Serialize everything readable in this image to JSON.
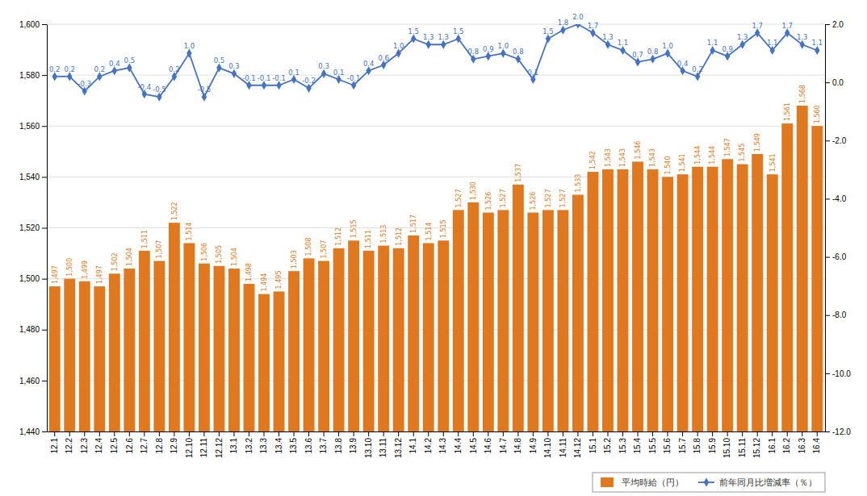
{
  "chart_data": {
    "type": "bar",
    "categories": [
      "12.1",
      "12.2",
      "12.3",
      "12.4",
      "12.5",
      "12.6",
      "12.7",
      "12.8",
      "12.9",
      "12.10",
      "12.11",
      "12.12",
      "13.1",
      "13.2",
      "13.3",
      "13.4",
      "13.5",
      "13.6",
      "13.7",
      "13.8",
      "13.9",
      "13.10",
      "13.11",
      "13.12",
      "14.1",
      "14.2",
      "14.3",
      "14.4",
      "14.5",
      "14.6",
      "14.7",
      "14.8",
      "14.9",
      "14.10",
      "14.11",
      "14.12",
      "15.1",
      "15.2",
      "15.3",
      "15.4",
      "15.5",
      "15.6",
      "15.7",
      "15.8",
      "15.9",
      "15.10",
      "15.11",
      "15.12",
      "16.1",
      "16.2",
      "16.3",
      "16.4"
    ],
    "series": [
      {
        "name": "平均時給（円）",
        "type": "bar",
        "color": "#E07820",
        "values": [
          1497,
          1500,
          1499,
          1497,
          1502,
          1504,
          1511,
          1507,
          1522,
          1514,
          1506,
          1505,
          1504,
          1498,
          1494,
          1495,
          1503,
          1508,
          1507,
          1512,
          1515,
          1511,
          1513,
          1512,
          1517,
          1514,
          1515,
          1527,
          1530,
          1526,
          1527,
          1537,
          1526,
          1527,
          1527,
          1533,
          1542,
          1543,
          1543,
          1546,
          1543,
          1540,
          1541,
          1544,
          1544,
          1547,
          1545,
          1549,
          1541,
          1561,
          1568,
          1560
        ],
        "value_labels": [
          "1,497",
          "1,500",
          "1,499",
          "1,497",
          "1,502",
          "1,504",
          "1,511",
          "1,507",
          "1,522",
          "1,514",
          "1,506",
          "1,505",
          "1,504",
          "1,498",
          "1,494",
          "1,495",
          "1,503",
          "1,508",
          "1,507",
          "1,512",
          "1,515",
          "1,511",
          "1,513",
          "1,512",
          "1,517",
          "1,514",
          "1,515",
          "1,527",
          "1,530",
          "1,526",
          "1,527",
          "1,537",
          "1,526",
          "1,527",
          "1,527",
          "1,533",
          "1,542",
          "1,543",
          "1,543",
          "1,546",
          "1,543",
          "1,540",
          "1,541",
          "1,544",
          "1,544",
          "1,547",
          "1,545",
          "1,549",
          "1,541",
          "1,561",
          "1,568",
          "1,560"
        ]
      },
      {
        "name": "前年同月比増減率（％）",
        "type": "line",
        "axis": "y2",
        "color": "#4472C4",
        "marker": "diamond",
        "values": [
          0.2,
          0.2,
          -0.3,
          0.2,
          0.4,
          0.5,
          -0.4,
          -0.5,
          0.2,
          1.0,
          -0.5,
          0.5,
          0.3,
          -0.1,
          -0.1,
          -0.1,
          0.1,
          -0.2,
          0.3,
          0.1,
          -0.1,
          0.4,
          0.6,
          1.0,
          1.5,
          1.3,
          1.3,
          1.5,
          0.8,
          0.9,
          1.0,
          0.8,
          0.1,
          1.5,
          1.8,
          2.0,
          1.7,
          1.3,
          1.1,
          0.7,
          0.8,
          1.0,
          0.4,
          0.2,
          1.1,
          0.9,
          1.3,
          1.7,
          1.1,
          1.7,
          1.3,
          1.1
        ],
        "value_labels": [
          "0.2",
          "0.2",
          "-0.3",
          "0.2",
          "0.4",
          "0.5",
          "-0.4",
          "-0.5",
          "0.2",
          "1.0",
          "-0.5",
          "0.5",
          "0.3",
          "-0.1",
          "-0.1",
          "-0.1",
          "0.1",
          "-0.2",
          "0.3",
          "0.1",
          "-0.1",
          "0.4",
          "0.6",
          "1.0",
          "1.5",
          "1.3",
          "1.3",
          "1.5",
          "0.8",
          "0.9",
          "1.0",
          "0.8",
          "0.1",
          "1.5",
          "1.8",
          "2.0",
          "1.7",
          "1.3",
          "1.1",
          "0.7",
          "0.8",
          "1.0",
          "0.4",
          "0.2",
          "1.1",
          "0.9",
          "1.3",
          "1.7",
          "1.1",
          "1.7",
          "1.3",
          "1.1"
        ]
      }
    ],
    "ylim": [
      1440,
      1600
    ],
    "yticks": [
      {
        "value": 1440,
        "label": "1,440"
      },
      {
        "value": 1460,
        "label": "1,460"
      },
      {
        "value": 1480,
        "label": "1,480"
      },
      {
        "value": 1500,
        "label": "1,500"
      },
      {
        "value": 1520,
        "label": "1,520"
      },
      {
        "value": 1540,
        "label": "1,540"
      },
      {
        "value": 1560,
        "label": "1,560"
      },
      {
        "value": 1580,
        "label": "1,580"
      },
      {
        "value": 1600,
        "label": "1,600"
      }
    ],
    "y2lim": [
      -12.0,
      2.0
    ],
    "y2ticks": [
      {
        "value": -12.0,
        "label": "-12.0"
      },
      {
        "value": -10.0,
        "label": "-10.0"
      },
      {
        "value": -8.0,
        "label": "-8.0"
      },
      {
        "value": -6.0,
        "label": "-6.0"
      },
      {
        "value": -4.0,
        "label": "-4.0"
      },
      {
        "value": -2.0,
        "label": "-2.0"
      },
      {
        "value": 0.0,
        "label": "0.0"
      },
      {
        "value": 2.0,
        "label": "2.0"
      }
    ],
    "grid": true,
    "legend": "lower right",
    "data_labels": true
  }
}
